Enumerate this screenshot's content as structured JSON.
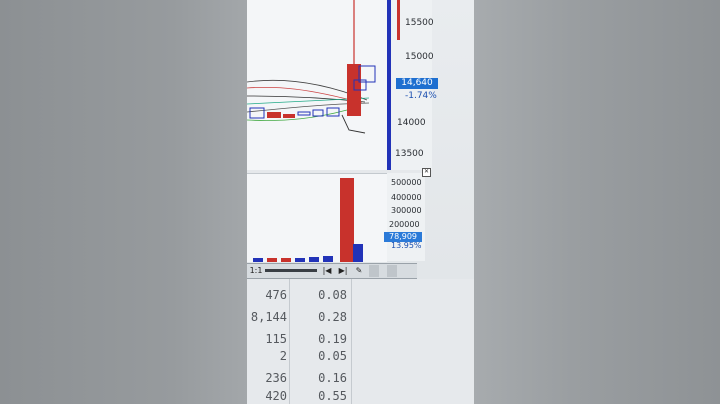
{
  "price_chart": {
    "axis_ticks": [
      "15500",
      "15000",
      "14000",
      "13500"
    ],
    "current_price": "14,640",
    "change_pct": "-1.74%"
  },
  "volume_chart": {
    "axis_ticks": [
      "500000",
      "400000",
      "300000",
      "200000"
    ],
    "current_volume": "78,909",
    "volume_pct": "13.95%"
  },
  "toolbar": {
    "zoom_label": "1:1",
    "first_label": "|◀",
    "last_label": "▶|",
    "tool_label": "✎",
    "close_label": "✕"
  },
  "table": {
    "rows": [
      {
        "qty": "476",
        "ratio": "0.08"
      },
      {
        "qty": "8,144",
        "ratio": "0.28"
      },
      {
        "qty": "115",
        "ratio": "0.19"
      },
      {
        "qty": "2",
        "ratio": "0.05"
      },
      {
        "qty": "236",
        "ratio": "0.16"
      },
      {
        "qty": "420",
        "ratio": "0.55"
      }
    ]
  },
  "colors": {
    "up": "#c8322c",
    "down": "#2233b8",
    "accent": "#1e6fd0"
  }
}
